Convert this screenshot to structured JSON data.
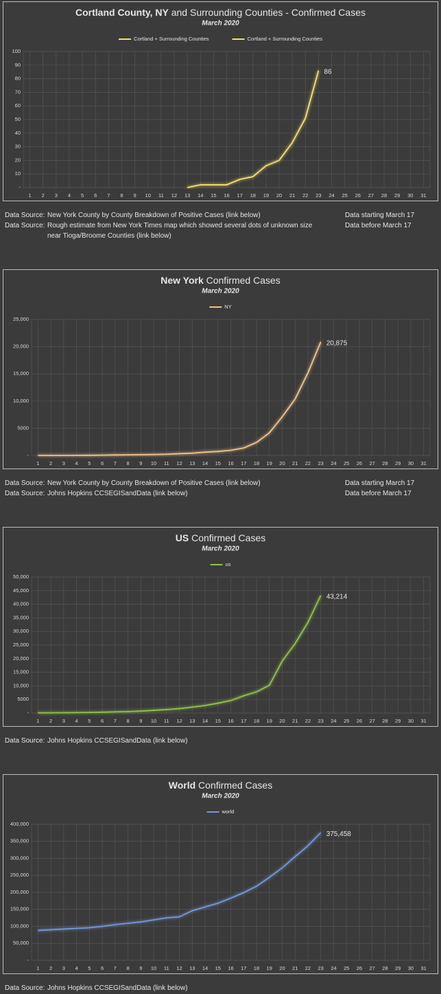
{
  "chart_data": [
    {
      "type": "line",
      "title_bold": "Cortland County, NY",
      "title": " and Surrounding Counties - Confirmed Cases",
      "subtitle": "March 2020",
      "x": [
        1,
        2,
        3,
        4,
        5,
        6,
        7,
        8,
        9,
        10,
        11,
        12,
        13,
        14,
        15,
        16,
        17,
        18,
        19,
        20,
        21,
        22,
        23,
        24,
        25,
        26,
        27,
        28,
        29,
        30,
        31
      ],
      "series": [
        {
          "name": "Cortland + Surrounding Counties",
          "color": "#f3e16a",
          "values": [
            null,
            null,
            null,
            null,
            null,
            null,
            null,
            null,
            null,
            null,
            null,
            null,
            0,
            2,
            2,
            2,
            6,
            null,
            null,
            null,
            null,
            null,
            null,
            null,
            null,
            null,
            null,
            null,
            null,
            null,
            null
          ]
        },
        {
          "name": "Cortland + Surrounding Counties",
          "color": "#f3e16a",
          "values": [
            null,
            null,
            null,
            null,
            null,
            null,
            null,
            null,
            null,
            null,
            null,
            null,
            null,
            null,
            null,
            null,
            6,
            8,
            16,
            20,
            33,
            51,
            86,
            null,
            null,
            null,
            null,
            null,
            null,
            null,
            null
          ],
          "value_labels": [
            null,
            null,
            null,
            null,
            null,
            null,
            null,
            null,
            null,
            null,
            null,
            null,
            null,
            null,
            null,
            null,
            null,
            null,
            null,
            null,
            null,
            null,
            "86",
            null,
            null,
            null,
            null,
            null,
            null,
            null,
            null
          ]
        }
      ],
      "ylim": [
        0,
        100
      ],
      "yticks": [
        {
          "value": 0,
          "label": "-"
        },
        10,
        20,
        30,
        40,
        50,
        60,
        70,
        80,
        90,
        100
      ],
      "grid": true,
      "sources": [
        {
          "label": "Data Source:",
          "text": "New York County by County Breakdown of Positive Cases (link below)",
          "note": "Data starting March 17"
        },
        {
          "label": "Data Source:",
          "text": "Rough estimate from New York Times map which showed several dots of unknown size near Tioga/Broome Counties (link below)",
          "note": "Data before March 17"
        }
      ]
    },
    {
      "type": "line",
      "title_bold": "New York",
      "title": " Confirmed Cases",
      "subtitle": "March 2020",
      "x": [
        1,
        2,
        3,
        4,
        5,
        6,
        7,
        8,
        9,
        10,
        11,
        12,
        13,
        14,
        15,
        16,
        17,
        18,
        19,
        20,
        21,
        22,
        23,
        24,
        25,
        26,
        27,
        28,
        29,
        30,
        31
      ],
      "series": [
        {
          "name": "NY",
          "color": "#f1c38a",
          "values": [
            1,
            1,
            2,
            11,
            22,
            44,
            89,
            106,
            142,
            173,
            217,
            326,
            421,
            610,
            732,
            950,
            1374,
            2382,
            4152,
            7102,
            10356,
            15168,
            20875,
            null,
            null,
            null,
            null,
            null,
            null,
            null,
            null
          ],
          "value_labels": [
            null,
            null,
            null,
            null,
            null,
            null,
            null,
            null,
            null,
            null,
            null,
            null,
            null,
            null,
            null,
            null,
            null,
            null,
            null,
            null,
            null,
            null,
            "20,875",
            null,
            null,
            null,
            null,
            null,
            null,
            null,
            null
          ]
        }
      ],
      "ylim": [
        0,
        25000
      ],
      "yticks": [
        {
          "value": 0,
          "label": "-"
        },
        5000,
        {
          "value": 10000,
          "label": "10,000"
        },
        {
          "value": 15000,
          "label": "15,000"
        },
        {
          "value": 20000,
          "label": "20,000"
        },
        {
          "value": 25000,
          "label": "25,000"
        }
      ],
      "grid": true,
      "sources": [
        {
          "label": "Data Source:",
          "text": "New York County by County Breakdown of Positive Cases (link below)",
          "note": "Data starting March 17"
        },
        {
          "label": "Data Source:",
          "text": "Johns Hopkins CCSEGISandData (link below)",
          "note": "Data before March 17"
        }
      ]
    },
    {
      "type": "line",
      "title_bold": "US",
      "title": " Confirmed Cases",
      "subtitle": "March 2020",
      "x": [
        1,
        2,
        3,
        4,
        5,
        6,
        7,
        8,
        9,
        10,
        11,
        12,
        13,
        14,
        15,
        16,
        17,
        18,
        19,
        20,
        21,
        22,
        23,
        24,
        25,
        26,
        27,
        28,
        29,
        30,
        31
      ],
      "series": [
        {
          "name": "us",
          "color": "#8fc446",
          "values": [
            75,
            100,
            124,
            158,
            221,
            319,
            435,
            541,
            704,
            994,
            1301,
            1630,
            2183,
            2770,
            3613,
            4596,
            6344,
            7786,
            10200,
            19100,
            25500,
            33300,
            43214,
            null,
            null,
            null,
            null,
            null,
            null,
            null,
            null
          ],
          "value_labels": [
            null,
            null,
            null,
            null,
            null,
            null,
            null,
            null,
            null,
            null,
            null,
            null,
            null,
            null,
            null,
            null,
            null,
            null,
            null,
            null,
            null,
            null,
            "43,214",
            null,
            null,
            null,
            null,
            null,
            null,
            null,
            null
          ]
        }
      ],
      "ylim": [
        0,
        50000
      ],
      "yticks": [
        {
          "value": 0,
          "label": "-"
        },
        5000,
        {
          "value": 10000,
          "label": "10,000"
        },
        {
          "value": 15000,
          "label": "15,000"
        },
        {
          "value": 20000,
          "label": "20,000"
        },
        {
          "value": 25000,
          "label": "25,000"
        },
        {
          "value": 30000,
          "label": "30,000"
        },
        {
          "value": 35000,
          "label": "35,000"
        },
        {
          "value": 40000,
          "label": "40,000"
        },
        {
          "value": 45000,
          "label": "45,000"
        },
        {
          "value": 50000,
          "label": "50,000"
        }
      ],
      "grid": true,
      "sources": [
        {
          "label": "Data Source:",
          "text": "Johns Hopkins CCSEGISandData (link below)"
        }
      ]
    },
    {
      "type": "line",
      "title_bold": "World",
      "title": " Confirmed Cases",
      "subtitle": "March 2020",
      "x": [
        1,
        2,
        3,
        4,
        5,
        6,
        7,
        8,
        9,
        10,
        11,
        12,
        13,
        14,
        15,
        16,
        17,
        18,
        19,
        20,
        21,
        22,
        23,
        24,
        25,
        26,
        27,
        28,
        29,
        30,
        31
      ],
      "series": [
        {
          "name": "world",
          "color": "#7099dc",
          "values": [
            88000,
            90000,
            92000,
            94000,
            96000,
            100000,
            105000,
            109000,
            113000,
            119000,
            125000,
            128000,
            146000,
            157000,
            168000,
            183000,
            199000,
            218000,
            244000,
            272000,
            305000,
            337000,
            375458,
            null,
            null,
            null,
            null,
            null,
            null,
            null,
            null
          ],
          "value_labels": [
            null,
            null,
            null,
            null,
            null,
            null,
            null,
            null,
            null,
            null,
            null,
            null,
            null,
            null,
            null,
            null,
            null,
            null,
            null,
            null,
            null,
            null,
            "375,458",
            null,
            null,
            null,
            null,
            null,
            null,
            null,
            null
          ]
        }
      ],
      "ylim": [
        0,
        400000
      ],
      "yticks": [
        {
          "value": 0,
          "label": "-"
        },
        {
          "value": 50000,
          "label": "50,000"
        },
        {
          "value": 100000,
          "label": "100,000"
        },
        {
          "value": 150000,
          "label": "150,000"
        },
        {
          "value": 200000,
          "label": "200,000"
        },
        {
          "value": 250000,
          "label": "250,000"
        },
        {
          "value": 300000,
          "label": "300,000"
        },
        {
          "value": 350000,
          "label": "350,000"
        },
        {
          "value": 400000,
          "label": "400,000"
        }
      ],
      "grid": true,
      "sources": [
        {
          "label": "Data Source:",
          "text": "Johns Hopkins CCSEGISandData (link below)"
        }
      ]
    }
  ]
}
